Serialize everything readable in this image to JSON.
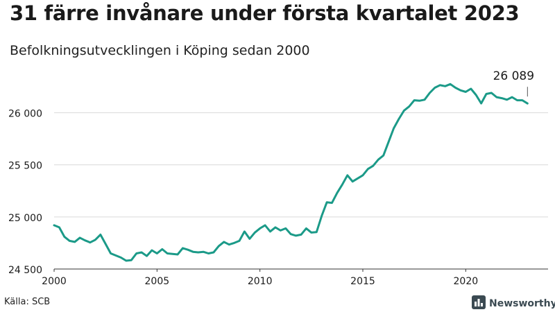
{
  "header": {
    "title": "31 färre invånare under första kvartalet 2023",
    "subtitle": "Befolkningsutvecklingen i Köping sedan 2000"
  },
  "footer": {
    "source": "Källa: SCB",
    "brand": "Newsworthy"
  },
  "colors": {
    "line": "#1b9a88",
    "grid": "#d9d9d9",
    "text": "#1a1a1a",
    "brand": "#3b4a52"
  },
  "chart_data": {
    "type": "line",
    "title": "31 färre invånare under första kvartalet 2023",
    "subtitle": "Befolkningsutvecklingen i Köping sedan 2000",
    "xlabel": "",
    "ylabel": "",
    "xlim": [
      2000,
      2024
    ],
    "ylim": [
      24500,
      26350
    ],
    "grid": true,
    "x_ticks": [
      2000,
      2005,
      2010,
      2015,
      2020
    ],
    "x_tick_labels": [
      "2000",
      "2005",
      "2010",
      "2015",
      "2020"
    ],
    "y_ticks": [
      24500,
      25000,
      25500,
      26000
    ],
    "y_tick_labels": [
      "24 500",
      "25 000",
      "25 500",
      "26 000"
    ],
    "annotation": {
      "label": "26 089",
      "x": 2023.0,
      "y": 26089
    },
    "series": [
      {
        "name": "Befolkning",
        "x": [
          2000.0,
          2000.25,
          2000.5,
          2000.75,
          2001.0,
          2001.25,
          2001.5,
          2001.75,
          2002.0,
          2002.25,
          2002.5,
          2002.75,
          2003.0,
          2003.25,
          2003.5,
          2003.75,
          2004.0,
          2004.25,
          2004.5,
          2004.75,
          2005.0,
          2005.25,
          2005.5,
          2005.75,
          2006.0,
          2006.25,
          2006.5,
          2006.75,
          2007.0,
          2007.25,
          2007.5,
          2007.75,
          2008.0,
          2008.25,
          2008.5,
          2008.75,
          2009.0,
          2009.25,
          2009.5,
          2009.75,
          2010.0,
          2010.25,
          2010.5,
          2010.75,
          2011.0,
          2011.25,
          2011.5,
          2011.75,
          2012.0,
          2012.25,
          2012.5,
          2012.75,
          2013.0,
          2013.25,
          2013.5,
          2013.75,
          2014.0,
          2014.25,
          2014.5,
          2014.75,
          2015.0,
          2015.25,
          2015.5,
          2015.75,
          2016.0,
          2016.25,
          2016.5,
          2016.75,
          2017.0,
          2017.25,
          2017.5,
          2017.75,
          2018.0,
          2018.25,
          2018.5,
          2018.75,
          2019.0,
          2019.25,
          2019.5,
          2019.75,
          2020.0,
          2020.25,
          2020.5,
          2020.75,
          2021.0,
          2021.25,
          2021.5,
          2021.75,
          2022.0,
          2022.25,
          2022.5,
          2022.75,
          2023.0
        ],
        "values": [
          24920,
          24900,
          24810,
          24770,
          24760,
          24800,
          24775,
          24755,
          24780,
          24830,
          24740,
          24650,
          24630,
          24610,
          24580,
          24585,
          24650,
          24660,
          24625,
          24680,
          24650,
          24690,
          24650,
          24645,
          24640,
          24700,
          24685,
          24665,
          24660,
          24665,
          24650,
          24660,
          24720,
          24760,
          24735,
          24750,
          24770,
          24860,
          24790,
          24850,
          24890,
          24920,
          24860,
          24900,
          24870,
          24890,
          24835,
          24820,
          24830,
          24890,
          24850,
          24855,
          25010,
          25140,
          25135,
          25230,
          25310,
          25400,
          25340,
          25370,
          25400,
          25460,
          25490,
          25550,
          25590,
          25720,
          25850,
          25940,
          26020,
          26060,
          26120,
          26115,
          26125,
          26190,
          26240,
          26265,
          26255,
          26275,
          26240,
          26215,
          26200,
          26230,
          26170,
          26090,
          26180,
          26190,
          26150,
          26140,
          26125,
          26150,
          26120,
          26120,
          26089
        ]
      }
    ]
  }
}
